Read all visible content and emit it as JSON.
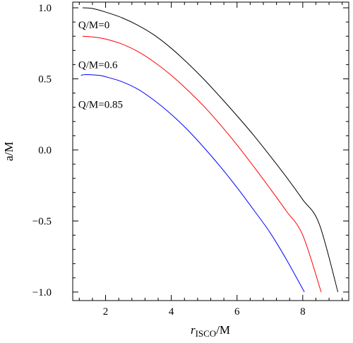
{
  "chart_data": {
    "type": "line",
    "title": "",
    "xlabel": {
      "main": "r",
      "sub": "ISCO",
      "tail": "/M"
    },
    "ylabel": "a/M",
    "xlim": [
      1.0,
      9.4
    ],
    "ylim": [
      -1.06,
      1.04
    ],
    "xticks": [
      2,
      4,
      6,
      8
    ],
    "xtick_labels": [
      "2",
      "4",
      "6",
      "8"
    ],
    "yticks": [
      1.0,
      0.5,
      0.0,
      -0.5,
      -1.0
    ],
    "ytick_labels": [
      "1.0",
      "0.5",
      "0.0",
      "−0.5",
      "−1.0"
    ],
    "grid": false,
    "annotations": [
      {
        "text": "Q/M=0",
        "x": 1.17,
        "y": 0.855
      },
      {
        "text": "Q/M=0.6",
        "x": 1.17,
        "y": 0.575
      },
      {
        "text": "Q/M=0.85",
        "x": 1.17,
        "y": 0.295
      }
    ],
    "series": [
      {
        "color": "#000000",
        "points": [
          [
            1.3,
            1.0
          ],
          [
            1.6,
            0.995
          ],
          [
            2.0,
            0.97
          ],
          [
            2.5,
            0.93
          ],
          [
            3.0,
            0.875
          ],
          [
            3.5,
            0.805
          ],
          [
            4.0,
            0.715
          ],
          [
            4.5,
            0.61
          ],
          [
            5.0,
            0.495
          ],
          [
            5.5,
            0.37
          ],
          [
            6.0,
            0.24
          ],
          [
            6.5,
            0.105
          ],
          [
            7.0,
            -0.04
          ],
          [
            7.5,
            -0.19
          ],
          [
            8.0,
            -0.35
          ],
          [
            8.5,
            -0.52
          ],
          [
            9.07,
            -1.0
          ]
        ]
      },
      {
        "color": "#ff0000",
        "points": [
          [
            1.3,
            0.8
          ],
          [
            1.6,
            0.795
          ],
          [
            2.0,
            0.78
          ],
          [
            2.5,
            0.745
          ],
          [
            3.0,
            0.69
          ],
          [
            3.5,
            0.615
          ],
          [
            4.0,
            0.525
          ],
          [
            4.5,
            0.42
          ],
          [
            5.0,
            0.305
          ],
          [
            5.5,
            0.175
          ],
          [
            6.0,
            0.035
          ],
          [
            6.5,
            -0.115
          ],
          [
            7.0,
            -0.27
          ],
          [
            7.5,
            -0.43
          ],
          [
            8.0,
            -0.6
          ],
          [
            8.56,
            -1.0
          ]
        ]
      },
      {
        "color": "#0000ff",
        "points": [
          [
            1.25,
            0.525
          ],
          [
            1.4,
            0.53
          ],
          [
            1.8,
            0.525
          ],
          [
            2.0,
            0.515
          ],
          [
            2.5,
            0.48
          ],
          [
            3.0,
            0.425
          ],
          [
            3.5,
            0.345
          ],
          [
            4.0,
            0.25
          ],
          [
            4.5,
            0.14
          ],
          [
            5.0,
            0.015
          ],
          [
            5.5,
            -0.12
          ],
          [
            6.0,
            -0.265
          ],
          [
            6.5,
            -0.42
          ],
          [
            7.0,
            -0.58
          ],
          [
            7.5,
            -0.77
          ],
          [
            8.05,
            -1.0
          ]
        ]
      }
    ]
  }
}
